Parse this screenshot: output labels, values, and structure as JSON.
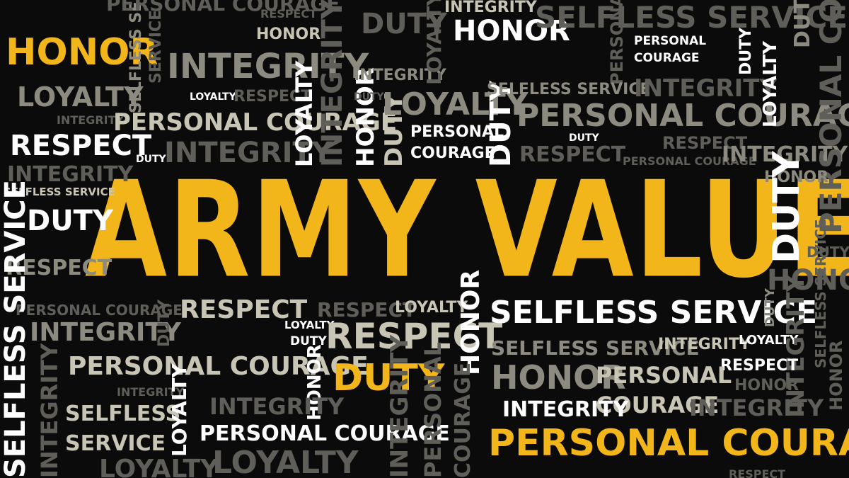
{
  "title": "ARMY VALUES",
  "values": {
    "honor": "HONOR",
    "loyalty": "LOYALTY",
    "respect": "RESPECT",
    "duty": "DUTY",
    "integrity": "INTEGRITY",
    "selfless_service": "SELFLESS SERVICE",
    "selfless": "SELFLESS",
    "service": "SERVICE",
    "personal_courage": "PERSONAL COURAGE",
    "personal": "PERSONAL",
    "courage": "COURAGE"
  },
  "colors": {
    "background": "#0b0b0b",
    "accent_yellow": "#f2b51a",
    "white": "#ffffff",
    "gray": "#8d8b80",
    "dark_gray": "#5f5e58",
    "beige": "#c9c5b5"
  }
}
